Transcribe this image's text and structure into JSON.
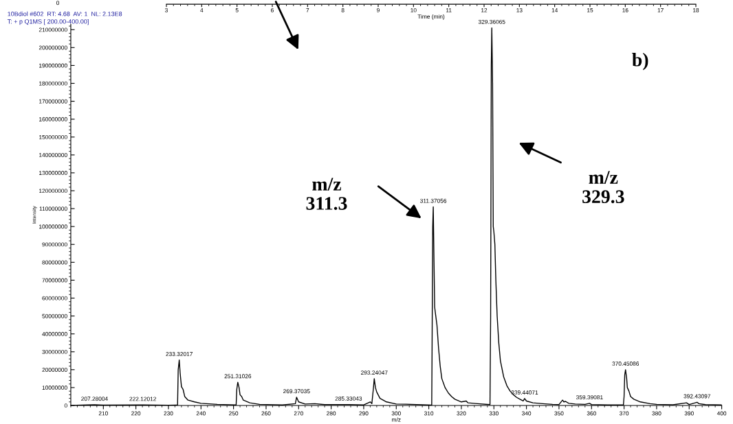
{
  "chart_data": {
    "type": "line",
    "xlabel": "m/z",
    "ylabel": "Intensity",
    "x2label": "Time (min)",
    "x": [
      200,
      205,
      207.28,
      210,
      222.12,
      230,
      232.8,
      233.0,
      233.32,
      233.6,
      234,
      234.5,
      235,
      236,
      238,
      240,
      245,
      250.8,
      251.0,
      251.31,
      251.7,
      252,
      252.5,
      253,
      255,
      258,
      265,
      269.0,
      269.37,
      270,
      272,
      275,
      278,
      285.33,
      290,
      292,
      292.5,
      293.0,
      293.24,
      293.6,
      294,
      295,
      297,
      300,
      303,
      308,
      310.9,
      311.0,
      311.2,
      311.37,
      311.6,
      311.8,
      312.0,
      312.5,
      313,
      313.5,
      314,
      315,
      316,
      317,
      318,
      320,
      321.5,
      322,
      325,
      328.8,
      329.0,
      329.2,
      329.36,
      329.6,
      329.8,
      330.0,
      330.3,
      330.6,
      331,
      331.5,
      332,
      333,
      334,
      335,
      336,
      337,
      338,
      339,
      339.44,
      340,
      342,
      345,
      348,
      350,
      351.1,
      351.5,
      352,
      353,
      355,
      358,
      359.39,
      360,
      365,
      369.8,
      370.0,
      370.2,
      370.45,
      370.8,
      371,
      371.5,
      372,
      373,
      375,
      378,
      380,
      385,
      389.2,
      390,
      392.43,
      393,
      395,
      400
    ],
    "series": [
      {
        "color": "#000000",
        "values": [
          0,
          300000,
          400000,
          200000,
          300000,
          100000,
          200000,
          20000000,
          25400000,
          18000000,
          10500000,
          9000000,
          5000000,
          3000000,
          2000000,
          1200000,
          600000,
          300000,
          9000000,
          13000000,
          10000000,
          6000000,
          5000000,
          3000000,
          1500000,
          600000,
          300000,
          1000000,
          4600000,
          2000000,
          800000,
          1000000,
          500000,
          500000,
          300000,
          2000000,
          1000000,
          10000000,
          15000000,
          10000000,
          7500000,
          4000000,
          2000000,
          800000,
          700000,
          400000,
          200000,
          30000000,
          100000000,
          111000000,
          80000000,
          55000000,
          52000000,
          45000000,
          32000000,
          22000000,
          15000000,
          10000000,
          7000000,
          5000000,
          3500000,
          2000000,
          2500000,
          1500000,
          1000000,
          500000,
          50000000,
          190000000,
          211000000,
          180000000,
          100000000,
          97000000,
          90000000,
          70000000,
          50000000,
          35000000,
          25000000,
          16000000,
          11000000,
          8000000,
          6000000,
          4500000,
          3500000,
          2500000,
          3900000,
          2500000,
          1500000,
          1000000,
          600000,
          500000,
          3000000,
          2000000,
          2300000,
          1200000,
          800000,
          600000,
          1200000,
          500000,
          300000,
          300000,
          5000000,
          17000000,
          20000000,
          15000000,
          10000000,
          8000000,
          5000000,
          3500000,
          2000000,
          1000000,
          600000,
          400000,
          1500000,
          500000,
          1800000,
          1000000,
          500000,
          300000
        ]
      }
    ],
    "xlim": [
      200,
      400
    ],
    "xticks": [
      210,
      220,
      230,
      240,
      250,
      260,
      270,
      280,
      290,
      300,
      310,
      320,
      330,
      340,
      350,
      360,
      370,
      380,
      390,
      400
    ],
    "ylim": [
      0,
      213000000
    ],
    "yticks": [
      0,
      10000000,
      20000000,
      30000000,
      40000000,
      50000000,
      60000000,
      70000000,
      80000000,
      90000000,
      100000000,
      110000000,
      120000000,
      130000000,
      140000000,
      150000000,
      160000000,
      170000000,
      180000000,
      190000000,
      200000000,
      210000000
    ],
    "x2lim": [
      3,
      18
    ],
    "x2ticks": [
      3,
      4,
      5,
      6,
      7,
      8,
      9,
      10,
      11,
      12,
      13,
      14,
      15,
      16,
      17,
      18
    ],
    "marker": "none",
    "line_style": "solid",
    "grid": false,
    "legend": false,
    "annotations": [
      "10Bdiol #602  RT: 4.68  AV: 1  NL: 2.13E8",
      "T: + p Q1MS [ 200.00-400.00]",
      "0",
      "b)",
      "m/z\n311.3",
      "m/z\n329.3",
      {
        "text": "207.28004",
        "x": 207.28004,
        "y": 400000
      },
      {
        "text": "222.12012",
        "x": 222.12012,
        "y": 300000
      },
      {
        "text": "233.32017",
        "x": 233.32017,
        "y": 25400000
      },
      {
        "text": "251.31026",
        "x": 251.31026,
        "y": 13000000
      },
      {
        "text": "269.37035",
        "x": 269.37035,
        "y": 4600000
      },
      {
        "text": "285.33043",
        "x": 285.33043,
        "y": 500000
      },
      {
        "text": "293.24047",
        "x": 293.24047,
        "y": 15000000
      },
      {
        "text": "311.37056",
        "x": 311.37056,
        "y": 111000000
      },
      {
        "text": "329.36065",
        "x": 329.36065,
        "y": 211000000
      },
      {
        "text": "339.44071",
        "x": 339.44071,
        "y": 3900000
      },
      {
        "text": "359.39081",
        "x": 359.39081,
        "y": 1200000
      },
      {
        "text": "370.45086",
        "x": 370.45086,
        "y": 20000000
      },
      {
        "text": "392.43097",
        "x": 392.43097,
        "y": 1800000
      }
    ]
  }
}
